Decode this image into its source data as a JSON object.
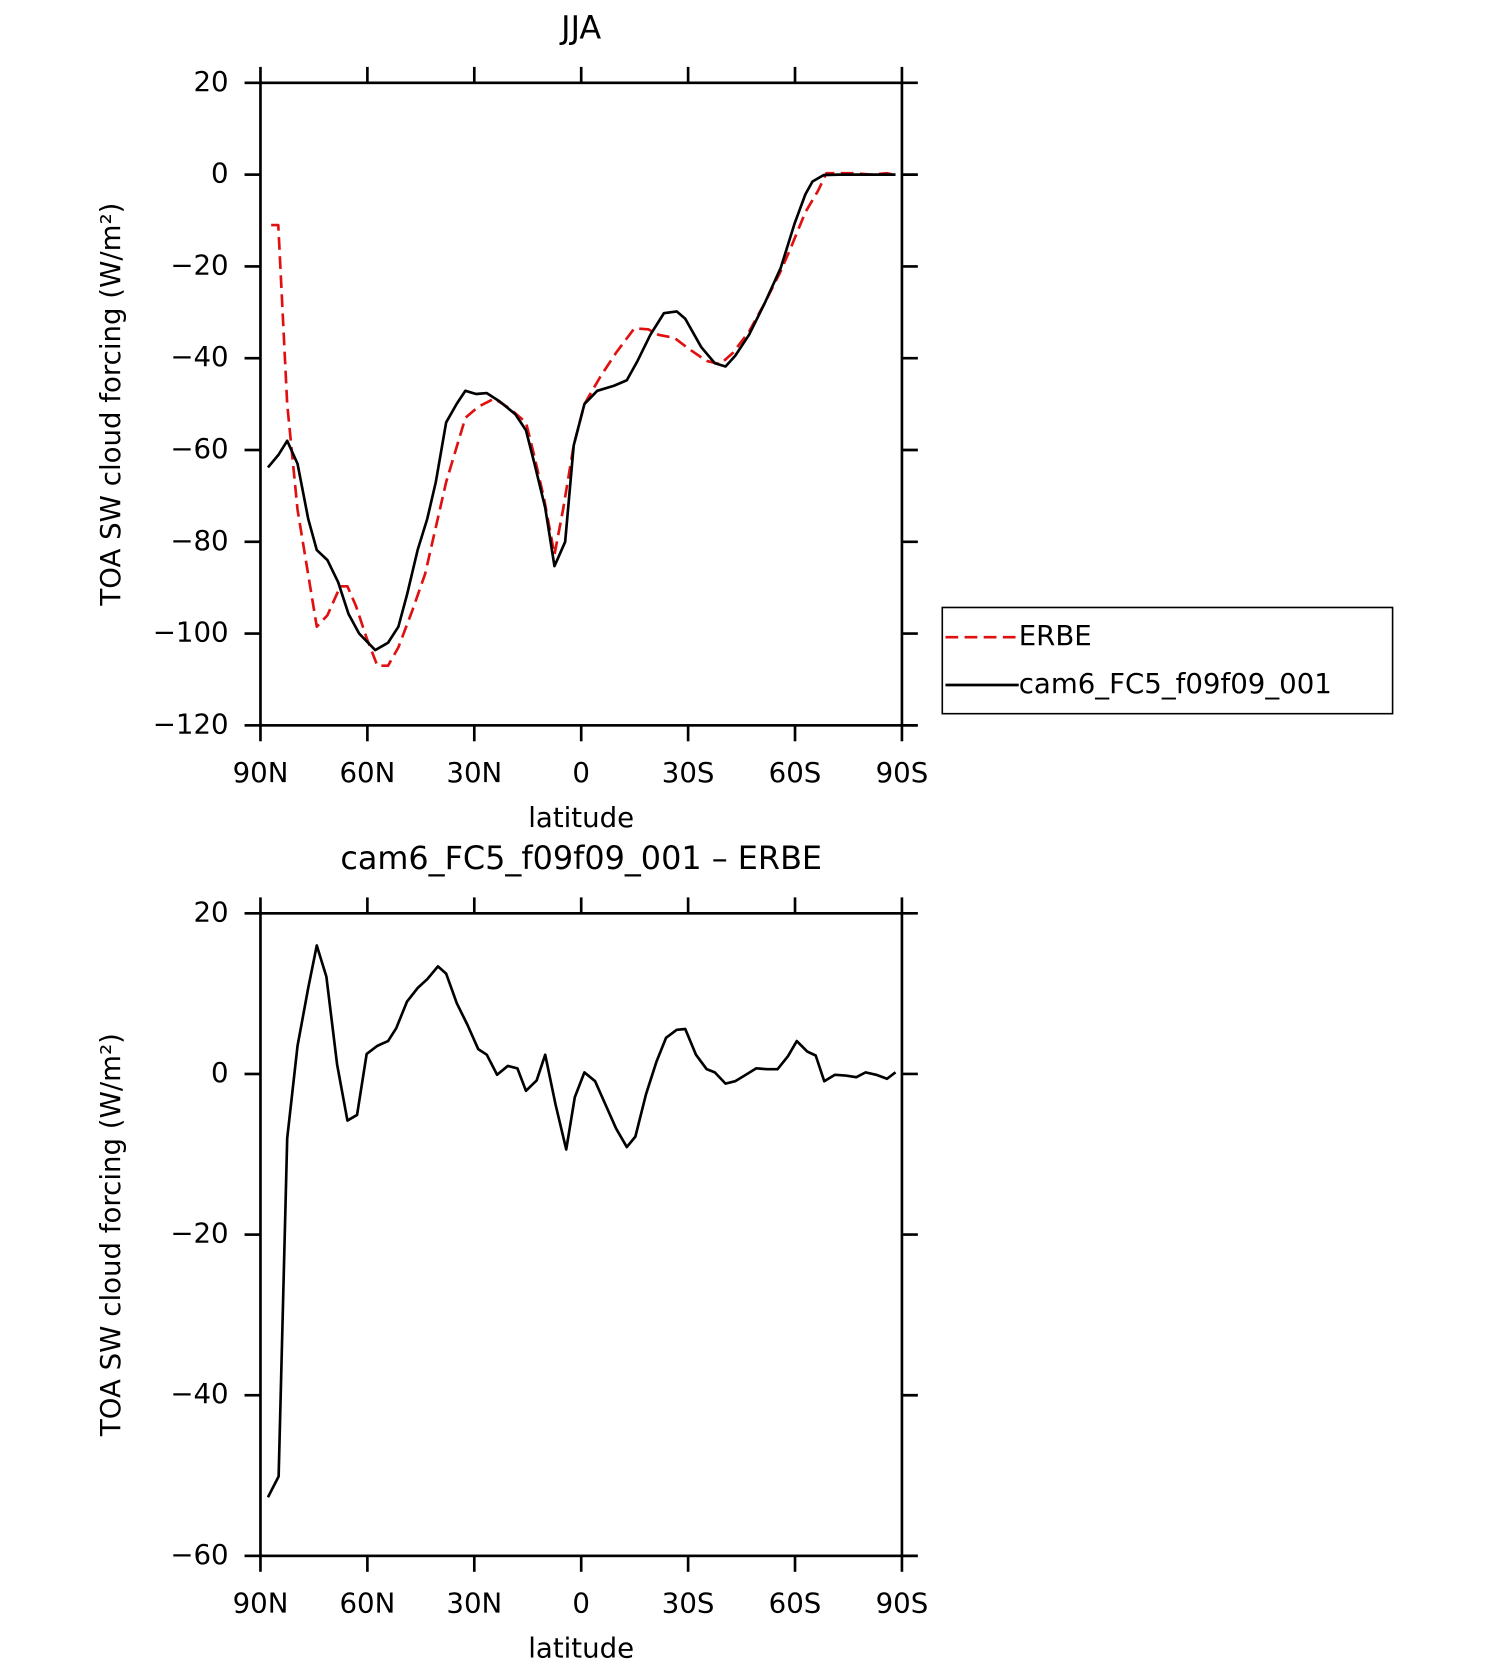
{
  "chart_data": [
    {
      "type": "line",
      "title": "JJA",
      "xlabel": "latitude",
      "ylabel": "TOA SW cloud forcing (W/m²)",
      "xlim": [
        90,
        -90
      ],
      "xticks": [
        {
          "value": 90,
          "label": "90N"
        },
        {
          "value": 60,
          "label": "60N"
        },
        {
          "value": 30,
          "label": "30N"
        },
        0,
        {
          "value": -30,
          "label": "30S"
        },
        {
          "value": -60,
          "label": "60S"
        },
        {
          "value": -90,
          "label": "90S"
        }
      ],
      "ylim": [
        -120,
        20
      ],
      "yticks": [
        {
          "value": -120,
          "label": "−120"
        },
        {
          "value": -100,
          "label": "−100"
        },
        {
          "value": -80,
          "label": "−80"
        },
        {
          "value": -60,
          "label": "−60"
        },
        {
          "value": -40,
          "label": "−40"
        },
        {
          "value": -20,
          "label": "−20"
        },
        0,
        20
      ],
      "legend": "right",
      "series": [
        {
          "name": "ERBE",
          "color": "#e01010",
          "dashed": true,
          "x": [
            87,
            85,
            82.5,
            79.6,
            74.2,
            71.2,
            67.6,
            65.6,
            63.2,
            60.2,
            57.2,
            54.2,
            51.3,
            47.4,
            43.8,
            37.9,
            32.5,
            28.9,
            24.4,
            20,
            15.5,
            13.1,
            10.4,
            7.5,
            5.1,
            2.1,
            -0.9,
            -5.4,
            -9.8,
            -14.9,
            -18.8,
            -21.7,
            -26.2,
            -30.1,
            -35.2,
            -39,
            -42.6,
            -47.1,
            -51.5,
            -56,
            -59,
            -62.9,
            -66.4,
            -68.8,
            -72.4,
            -76.9,
            -81.3,
            -85.8,
            -88.2
          ],
          "values": [
            -11,
            -11,
            -50,
            -73,
            -98.5,
            -96,
            -89.7,
            -89.7,
            -94,
            -101,
            -107,
            -107,
            -103,
            -95,
            -87,
            -67,
            -53,
            -50.6,
            -48.8,
            -51,
            -54,
            -61.5,
            -70.7,
            -82.8,
            -73,
            -59,
            -50,
            -44,
            -38.8,
            -33.5,
            -33.7,
            -34.9,
            -35.6,
            -37.9,
            -40.6,
            -41.3,
            -38.8,
            -34.2,
            -28,
            -21,
            -15.6,
            -8.2,
            -3.6,
            0.3,
            0.3,
            0.3,
            0,
            0.3,
            -0.1
          ]
        },
        {
          "name": "cam6_FC5_f09f09_001",
          "color": "#000000",
          "dashed": false,
          "x": [
            87.9,
            84.9,
            82.5,
            79.6,
            76.6,
            74.2,
            71.2,
            68.2,
            65.3,
            62.3,
            57.8,
            54.2,
            51.3,
            48.9,
            45.9,
            43.2,
            40.8,
            37.9,
            34.9,
            32.5,
            29.5,
            26.5,
            22.9,
            18.5,
            15.5,
            13.1,
            10.1,
            7.5,
            4.5,
            2.1,
            -0.9,
            -4.5,
            -9.2,
            -12.8,
            -15.8,
            -19.4,
            -23.2,
            -26.8,
            -29.2,
            -33.7,
            -37.5,
            -40.5,
            -43.2,
            -47.1,
            -51.5,
            -56,
            -59.9,
            -62.9,
            -64.9,
            -68,
            -72.4,
            -76.9,
            -81.3,
            -85.8,
            -88.2
          ],
          "values": [
            -63.8,
            -61,
            -58,
            -63,
            -75,
            -81.8,
            -84,
            -88.8,
            -95.7,
            -100,
            -103.6,
            -102,
            -98.5,
            -91.6,
            -81.8,
            -75,
            -67,
            -54,
            -49.9,
            -47.1,
            -47.8,
            -47.6,
            -49.4,
            -52.2,
            -55.7,
            -63,
            -72.6,
            -85.3,
            -80,
            -59,
            -50,
            -47.1,
            -46,
            -44.8,
            -40.6,
            -34.9,
            -30.2,
            -29.8,
            -31.4,
            -37.6,
            -41.1,
            -41.8,
            -39.5,
            -34.9,
            -28,
            -20.3,
            -10.6,
            -4.3,
            -1.5,
            -0.1,
            0,
            0,
            0,
            0,
            0
          ]
        }
      ]
    },
    {
      "type": "line",
      "title": "cam6_FC5_f09f09_001 – ERBE",
      "xlabel": "latitude",
      "ylabel": "TOA SW cloud forcing (W/m²)",
      "xlim": [
        90,
        -90
      ],
      "xticks": [
        {
          "value": 90,
          "label": "90N"
        },
        {
          "value": 60,
          "label": "60N"
        },
        {
          "value": 30,
          "label": "30N"
        },
        0,
        {
          "value": -30,
          "label": "30S"
        },
        {
          "value": -60,
          "label": "60S"
        },
        {
          "value": -90,
          "label": "90S"
        }
      ],
      "ylim": [
        -60,
        20
      ],
      "yticks": [
        {
          "value": -60,
          "label": "−60"
        },
        {
          "value": -40,
          "label": "−40"
        },
        {
          "value": -20,
          "label": "−20"
        },
        0,
        20
      ],
      "series": [
        {
          "color": "#000000",
          "dashed": false,
          "x": [
            87.9,
            84.9,
            82.5,
            79.6,
            76.6,
            74.2,
            71.5,
            68.5,
            65.6,
            62.9,
            60.2,
            57.2,
            54.2,
            51.9,
            48.9,
            45.9,
            43.2,
            40.2,
            37.9,
            34.9,
            31.9,
            28.9,
            26.5,
            23.6,
            20.6,
            17.9,
            15.5,
            12.5,
            10.1,
            7.2,
            4.2,
            1.8,
            -0.9,
            -3.9,
            -6.8,
            -9.8,
            -12.8,
            -15.2,
            -18.2,
            -21.1,
            -23.8,
            -26.8,
            -29.2,
            -32.2,
            -35.2,
            -37.5,
            -40.5,
            -43.2,
            -46.2,
            -49.1,
            -52.1,
            -55.1,
            -58,
            -60.5,
            -63.4,
            -65.8,
            -68.2,
            -71.2,
            -74.2,
            -77.2,
            -79.8,
            -82.8,
            -85.8,
            -88.2
          ],
          "values": [
            -52.7,
            -50.1,
            -8,
            3.5,
            10.7,
            16,
            12.1,
            1.2,
            -5.8,
            -5.1,
            2.5,
            3.5,
            4.1,
            5.7,
            9,
            10.7,
            11.8,
            13.4,
            12.5,
            8.8,
            6.1,
            3.1,
            2.4,
            -0.1,
            1,
            0.7,
            -2.1,
            -0.8,
            2.4,
            -3.8,
            -9.4,
            -2.9,
            0.2,
            -0.9,
            -3.8,
            -6.8,
            -9.1,
            -7.8,
            -2.5,
            1.5,
            4.5,
            5.5,
            5.6,
            2.4,
            0.6,
            0.2,
            -1.2,
            -0.9,
            -0.1,
            0.7,
            0.6,
            0.6,
            2.2,
            4.1,
            2.8,
            2.3,
            -0.9,
            -0.1,
            -0.2,
            -0.4,
            0.2,
            -0.1,
            -0.6,
            0.2
          ]
        }
      ]
    }
  ]
}
